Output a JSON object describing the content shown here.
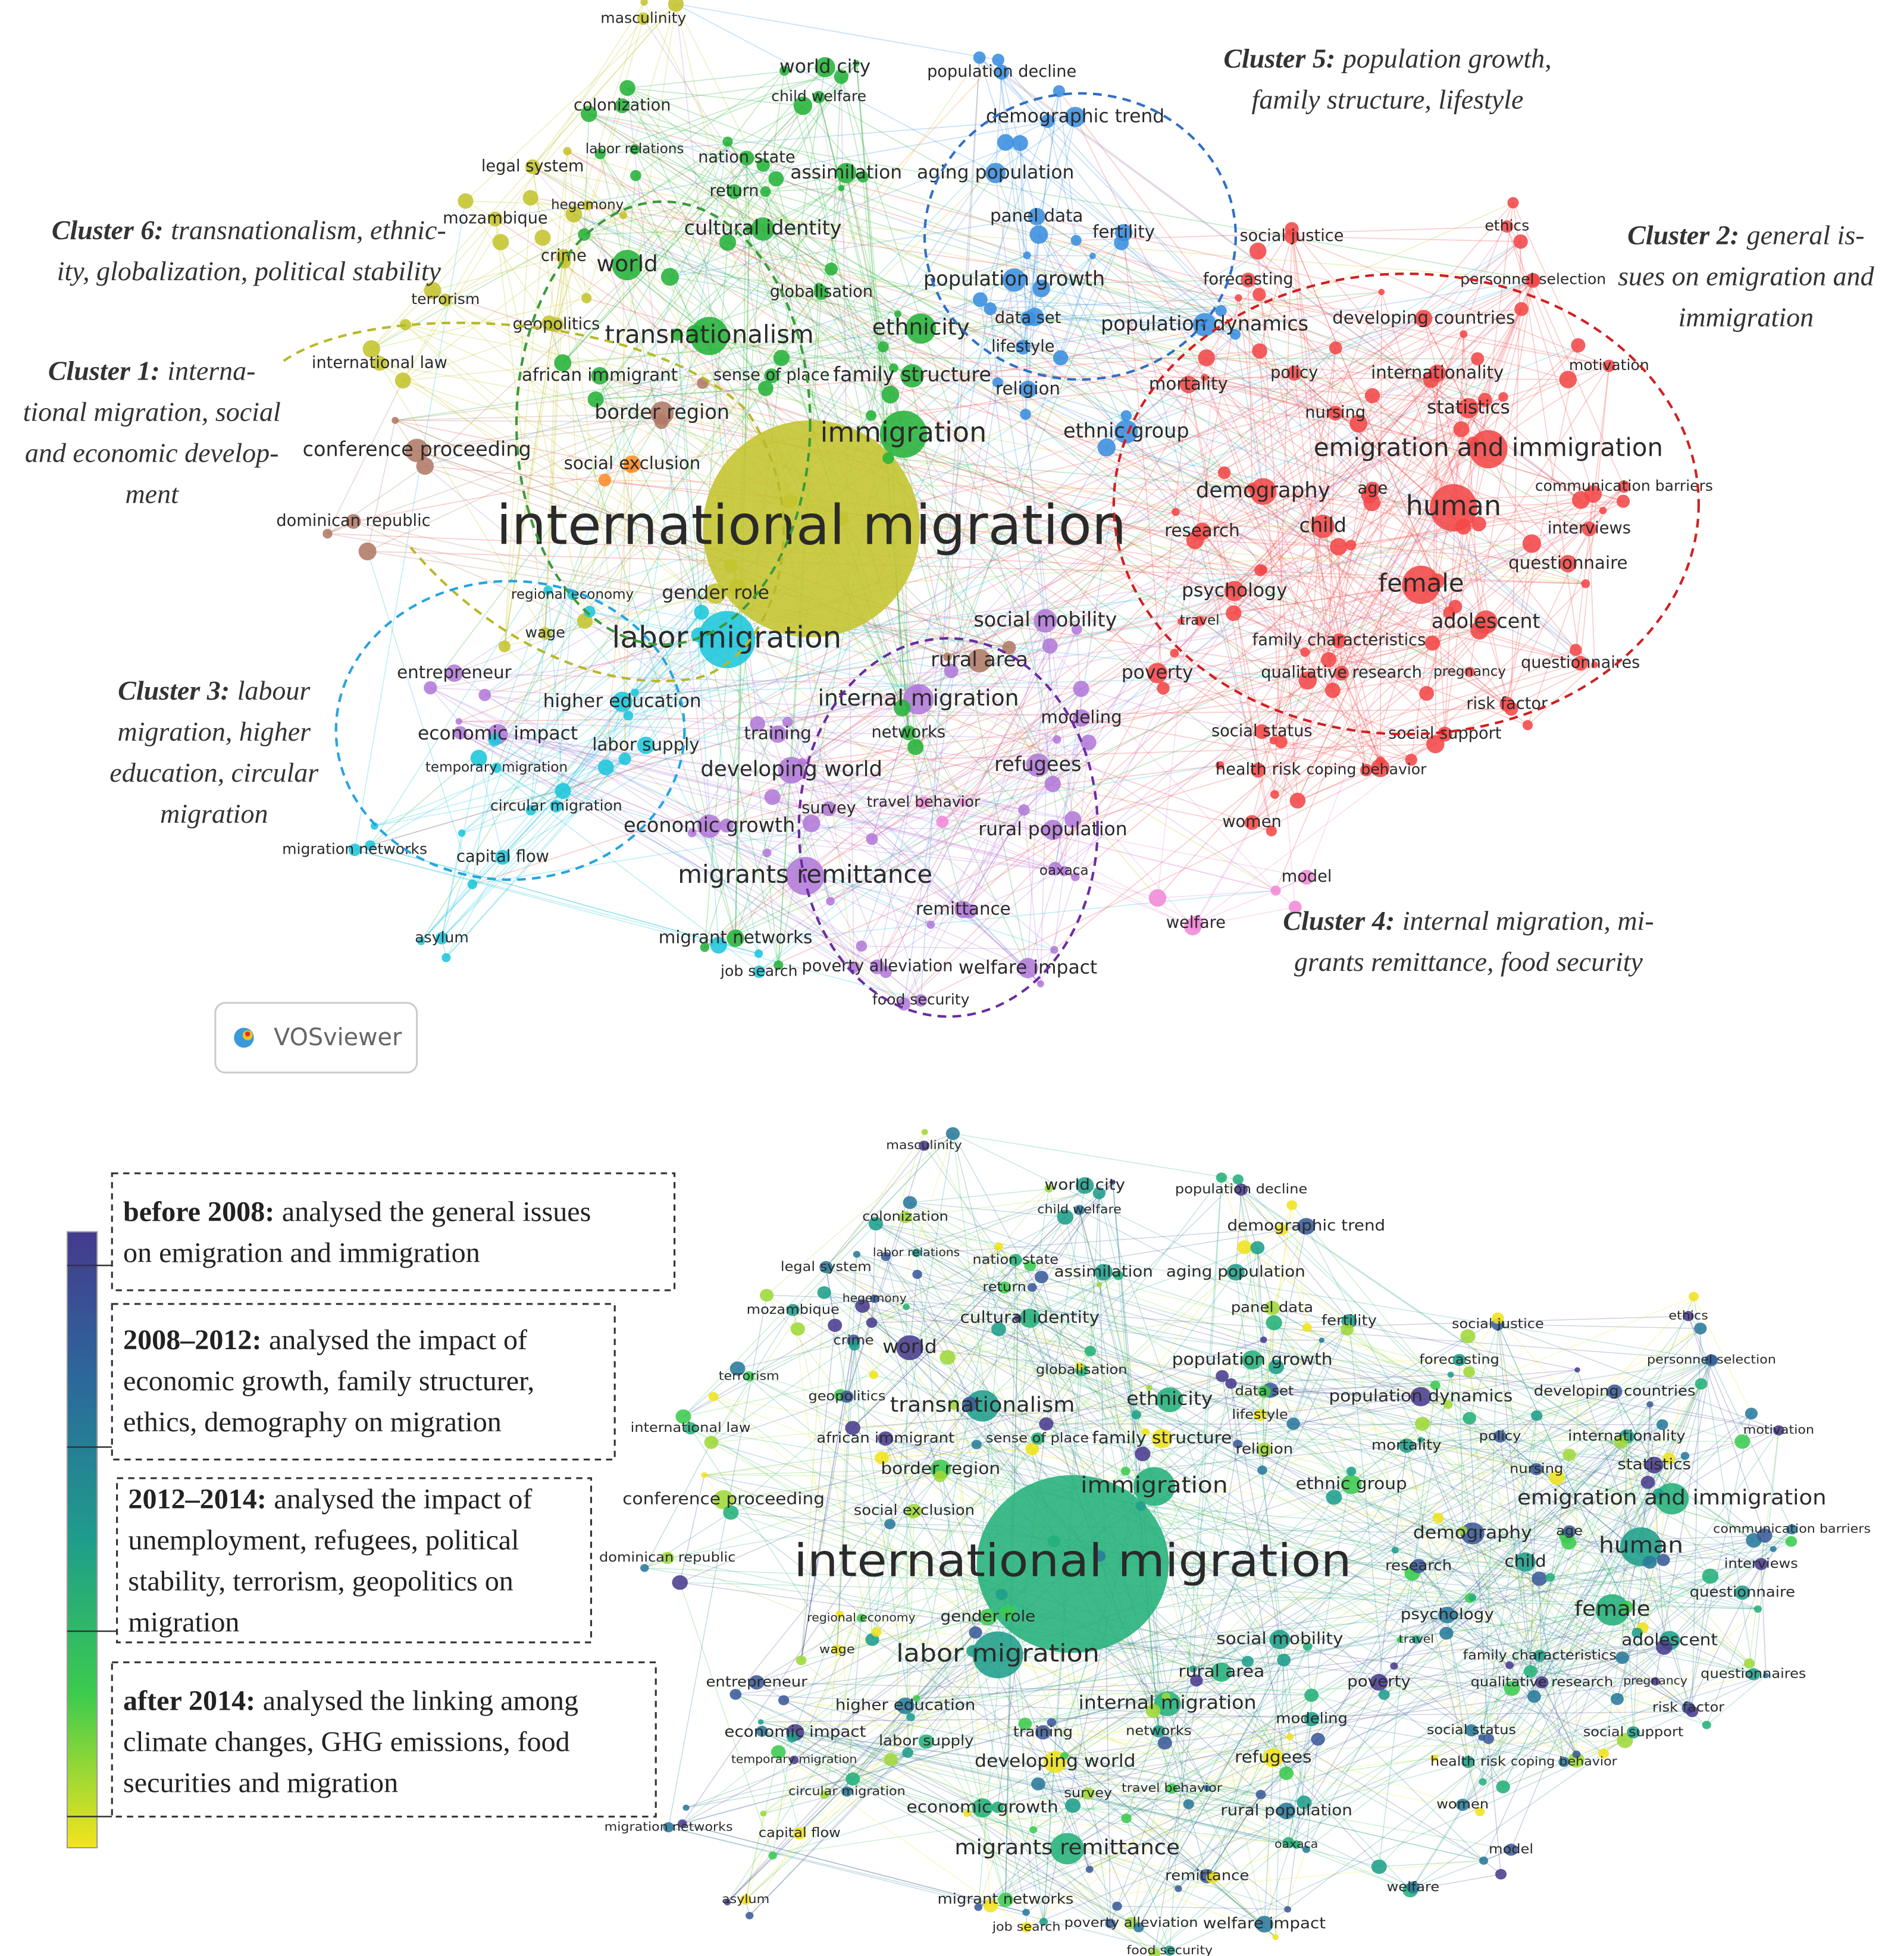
{
  "cluster_map": {
    "nodes": [
      "masculinity",
      "world city",
      "child welfare",
      "population decline",
      "colonization",
      "labor relations",
      "nation state",
      "assimilation",
      "aging population",
      "legal system",
      "demographic trend",
      "return",
      "hegemony",
      "mozambique",
      "cultural identity",
      "panel data",
      "fertility",
      "world",
      "crime",
      "terrorism",
      "globalisation",
      "population growth",
      "social justice",
      "ethics",
      "personnel selection",
      "forecasting",
      "transnationalism",
      "geopolitics",
      "ethnicity",
      "data set",
      "population dynamics",
      "developing countries",
      "lifestyle",
      "international law",
      "african immigrant",
      "sense of place",
      "family structure",
      "policy",
      "internationality",
      "motivation",
      "border region",
      "religion",
      "mortality",
      "nursing",
      "statistics",
      "conference proceeding",
      "immigration",
      "ethnic group",
      "emigration and immigration",
      "social exclusion",
      "demography",
      "age",
      "communication barriers",
      "human",
      "international migration",
      "dominican republic",
      "research",
      "child",
      "interviews",
      "gender role",
      "questionnaire",
      "female",
      "regional economy",
      "psychology",
      "travel",
      "social mobility",
      "adolescent",
      "wage",
      "labor migration",
      "family characteristics",
      "rural area",
      "entrepreneur",
      "qualitative research",
      "pregnancy",
      "questionnaires",
      "poverty",
      "higher education",
      "internal migration",
      "risk factor",
      "modeling",
      "economic impact",
      "networks",
      "training",
      "labor supply",
      "social status",
      "social support",
      "temporary migration",
      "developing world",
      "refugees",
      "health risk",
      "coping behavior",
      "circular migration",
      "survey",
      "travel behavior",
      "economic growth",
      "rural population",
      "women",
      "migration networks",
      "capital flow",
      "oaxaca",
      "migrants remittance",
      "model",
      "remittance",
      "asylum",
      "migrant networks",
      "welfare",
      "poverty alleviation",
      "welfare impact",
      "job search",
      "food security"
    ],
    "clusters": [
      {
        "title": "Cluster 5:",
        "lines": [
          "population growth,",
          "family structure, lifestyle"
        ]
      },
      {
        "title": "Cluster 6:",
        "lines": [
          "transnationalism, ethnic-",
          "ity, globalization, political stability"
        ]
      },
      {
        "title": "Cluster 2:",
        "lines": [
          "general is-",
          "sues on emigration and",
          "immigration"
        ]
      },
      {
        "title": "Cluster 1:",
        "lines": [
          "interna-",
          "tional migration, social",
          "and economic develop-",
          "ment"
        ]
      },
      {
        "title": "Cluster 3:",
        "lines": [
          "labour",
          "migration, higher",
          "education, circular",
          "migration"
        ]
      },
      {
        "title": "Cluster 4:",
        "lines": [
          "internal migration, mi-",
          "grants remittance, food security"
        ]
      }
    ],
    "logo": "VOSviewer"
  },
  "overlay_map": {
    "periods": [
      {
        "title": "before 2008:",
        "lines": [
          "analysed the general issues",
          "on emigration and immigration"
        ]
      },
      {
        "title": "2008–2012:",
        "lines": [
          "analysed the impact of",
          "economic growth, family structurer,",
          "ethics, demography on migration"
        ]
      },
      {
        "title": "2012–2014:",
        "lines": [
          "analysed the impact of",
          "unemployment, refugees, political",
          "stability, terrorism, geopolitics on",
          "migration"
        ]
      },
      {
        "title": "after 2014:",
        "lines": [
          "analysed the linking among",
          "climate changes, GHG emissions, food",
          "securities and migration"
        ]
      }
    ]
  }
}
